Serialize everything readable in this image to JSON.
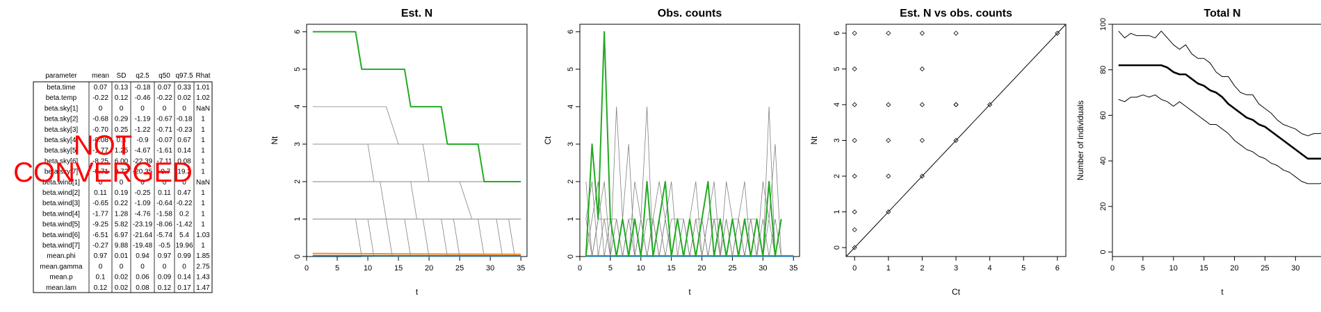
{
  "summary_table": {
    "headers": [
      "parameter",
      "mean",
      "SD",
      "q2.5",
      "q50",
      "q97.5",
      "Rhat"
    ],
    "rows": [
      [
        "beta.time",
        "0.07",
        "0.13",
        "-0.18",
        "0.07",
        "0.33",
        "1.01"
      ],
      [
        "beta.temp",
        "-0.22",
        "0.12",
        "-0.46",
        "-0.22",
        "0.02",
        "1.02"
      ],
      [
        "beta.sky[1]",
        "0",
        "0",
        "0",
        "0",
        "0",
        "NaN"
      ],
      [
        "beta.sky[2]",
        "-0.68",
        "0.29",
        "-1.19",
        "-0.67",
        "-0.18",
        "1"
      ],
      [
        "beta.sky[3]",
        "-0.70",
        "0.25",
        "-1.22",
        "-0.71",
        "-0.23",
        "1"
      ],
      [
        "beta.sky[4]",
        "-0.08",
        "0.4",
        "-0.9",
        "-0.07",
        "0.67",
        "1"
      ],
      [
        "beta.sky[5]",
        "-1.77",
        "1.25",
        "-4.67",
        "-1.61",
        "0.14",
        "1"
      ],
      [
        "beta.sky[6]",
        "-8.25",
        "6.00",
        "-22.39",
        "-7.11",
        "0.08",
        "1"
      ],
      [
        "beta.sky[7]",
        "-0.71",
        "9.72",
        "-20.35",
        "-0.7",
        "19.2",
        "1"
      ],
      [
        "beta.wind[1]",
        "0",
        "0",
        "0",
        "0",
        "0",
        "NaN"
      ],
      [
        "beta.wind[2]",
        "0.11",
        "0.19",
        "-0.25",
        "0.11",
        "0.47",
        "1"
      ],
      [
        "beta.wind[3]",
        "-0.65",
        "0.22",
        "-1.09",
        "-0.64",
        "-0.22",
        "1"
      ],
      [
        "beta.wind[4]",
        "-1.77",
        "1.28",
        "-4.76",
        "-1.58",
        "0.2",
        "1"
      ],
      [
        "beta.wind[5]",
        "-9.25",
        "5.82",
        "-23.19",
        "-8.06",
        "-1.42",
        "1"
      ],
      [
        "beta.wind[6]",
        "-6.51",
        "6.97",
        "-21.64",
        "-5.74",
        "5.4",
        "1.03"
      ],
      [
        "beta.wind[7]",
        "-0.27",
        "9.88",
        "-19.48",
        "-0.5",
        "19.96",
        "1"
      ],
      [
        "mean.phi",
        "0.97",
        "0.01",
        "0.94",
        "0.97",
        "0.99",
        "1.85"
      ],
      [
        "mean.gamma",
        "0",
        "0",
        "0",
        "0",
        "0",
        "2.75"
      ],
      [
        "mean.p",
        "0.1",
        "0.02",
        "0.06",
        "0.09",
        "0.14",
        "1.43"
      ],
      [
        "mean.lam",
        "0.12",
        "0.02",
        "0.08",
        "0.12",
        "0.17",
        "1.47"
      ]
    ],
    "warning_line1": "NOT",
    "warning_line2": "CONVERGED",
    "warning_color": "#ff0000"
  },
  "chart_data": [
    {
      "type": "line",
      "title": "Est. N",
      "xlabel": "t",
      "ylabel": "Nt",
      "xlim": [
        0,
        36
      ],
      "ylim": [
        0,
        6.2
      ],
      "xticks": [
        0,
        5,
        10,
        15,
        20,
        25,
        30,
        35
      ],
      "yticks": [
        0,
        1,
        2,
        3,
        4,
        5,
        6
      ],
      "grid": false,
      "colors": {
        "highlight": "#22aa22",
        "background_series": "#808080",
        "low1": "#ff8c1a",
        "low2": "#1f77b4"
      },
      "highlight_series": {
        "x": [
          1,
          8,
          9,
          16,
          17,
          22,
          23,
          28,
          29,
          35
        ],
        "y": [
          6,
          6,
          5,
          5,
          4,
          4,
          3,
          3,
          2,
          2
        ]
      },
      "background_series": [
        {
          "x": [
            1,
            13,
            15,
            35
          ],
          "y": [
            4,
            4,
            3,
            3
          ]
        },
        {
          "x": [
            1,
            10,
            11,
            35
          ],
          "y": [
            3,
            3,
            2,
            2
          ]
        },
        {
          "x": [
            1,
            19,
            20,
            35
          ],
          "y": [
            3,
            3,
            2,
            2
          ]
        },
        {
          "x": [
            1,
            12,
            13,
            35
          ],
          "y": [
            2,
            2,
            1,
            1
          ]
        },
        {
          "x": [
            1,
            17,
            18,
            35
          ],
          "y": [
            2,
            2,
            1,
            1
          ]
        },
        {
          "x": [
            1,
            25,
            27,
            35
          ],
          "y": [
            2,
            2,
            1,
            1
          ]
        },
        {
          "x": [
            1,
            8,
            9,
            35
          ],
          "y": [
            1,
            1,
            0,
            0
          ]
        },
        {
          "x": [
            1,
            10,
            11,
            35
          ],
          "y": [
            1,
            1,
            0,
            0
          ]
        },
        {
          "x": [
            1,
            13,
            14,
            35
          ],
          "y": [
            1,
            1,
            0,
            0
          ]
        },
        {
          "x": [
            1,
            16,
            17,
            35
          ],
          "y": [
            1,
            1,
            0,
            0
          ]
        },
        {
          "x": [
            1,
            19,
            20,
            35
          ],
          "y": [
            1,
            1,
            0,
            0
          ]
        },
        {
          "x": [
            1,
            22,
            23,
            35
          ],
          "y": [
            1,
            1,
            0,
            0
          ]
        },
        {
          "x": [
            1,
            24,
            25,
            35
          ],
          "y": [
            1,
            1,
            0,
            0
          ]
        },
        {
          "x": [
            1,
            28,
            29,
            35
          ],
          "y": [
            1,
            1,
            0,
            0
          ]
        },
        {
          "x": [
            1,
            31,
            32,
            35
          ],
          "y": [
            1,
            1,
            0,
            0
          ]
        },
        {
          "x": [
            1,
            33,
            34,
            35
          ],
          "y": [
            1,
            1,
            0,
            0
          ]
        }
      ],
      "low_series": [
        {
          "x": [
            1,
            35
          ],
          "y": [
            0.08,
            0.06
          ]
        },
        {
          "x": [
            1,
            35
          ],
          "y": [
            0.02,
            0.02
          ]
        }
      ]
    },
    {
      "type": "line",
      "title": "Obs. counts",
      "xlabel": "t",
      "ylabel": "Ct",
      "xlim": [
        0,
        36
      ],
      "ylim": [
        0,
        6.2
      ],
      "xticks": [
        0,
        5,
        10,
        15,
        20,
        25,
        30,
        35
      ],
      "yticks": [
        0,
        1,
        2,
        3,
        4,
        5,
        6
      ],
      "grid": false,
      "colors": {
        "highlight": "#22aa22",
        "background_series": "#808080",
        "low1": "#ff8c1a",
        "low2": "#1f77b4"
      },
      "highlight_series": {
        "x": [
          1,
          2,
          3,
          4,
          5,
          6,
          7,
          8,
          9,
          10,
          11,
          12,
          13,
          14,
          15,
          16,
          17,
          18,
          19,
          20,
          21,
          22,
          23,
          24,
          25,
          26,
          27,
          28,
          29,
          30,
          31,
          32,
          33
        ],
        "y": [
          0,
          3,
          1,
          6,
          1,
          0,
          1,
          0,
          1,
          0,
          2,
          0,
          1,
          2,
          0,
          1,
          0,
          1,
          0,
          1,
          2,
          0,
          1,
          0,
          1,
          0,
          1,
          0,
          1,
          0,
          2,
          0,
          1
        ]
      },
      "background_series": [
        {
          "x": [
            1,
            2,
            3,
            4,
            5,
            6,
            7,
            8,
            9,
            10,
            11,
            12,
            13,
            14,
            15,
            16,
            17,
            18,
            19,
            20,
            21,
            22,
            23,
            24,
            25,
            26,
            27,
            28,
            29,
            30,
            31,
            32,
            33
          ],
          "y": [
            2,
            0,
            1,
            2,
            0,
            4,
            1,
            0,
            2,
            1,
            0,
            1,
            0,
            1,
            2,
            0,
            1,
            0,
            1,
            0,
            1,
            2,
            0,
            1,
            0,
            1,
            2,
            0,
            1,
            0,
            4,
            0,
            1
          ]
        },
        {
          "x": [
            1,
            2,
            3,
            4,
            5,
            6,
            7,
            8,
            9,
            10,
            11,
            12,
            13,
            14,
            15,
            16,
            17,
            18,
            19,
            20,
            21,
            22,
            23,
            24,
            25,
            26,
            27,
            28,
            29,
            30,
            31,
            32,
            33
          ],
          "y": [
            1,
            2,
            0,
            1,
            1,
            0,
            1,
            3,
            0,
            1,
            4,
            0,
            1,
            0,
            1,
            1,
            0,
            1,
            2,
            0,
            1,
            1,
            0,
            2,
            1,
            0,
            1,
            1,
            0,
            2,
            1,
            3,
            0
          ]
        },
        {
          "x": [
            1,
            2,
            3,
            4,
            5,
            6,
            7,
            8,
            9,
            10,
            11,
            12,
            13,
            14,
            15,
            16,
            17,
            18,
            19,
            20,
            21,
            22,
            23,
            24,
            25,
            26,
            27,
            28,
            29,
            30,
            31,
            32,
            33
          ],
          "y": [
            0,
            1,
            2,
            0,
            1,
            1,
            0,
            1,
            1,
            0,
            1,
            1,
            2,
            1,
            0,
            1,
            1,
            0,
            1,
            1,
            0,
            1,
            1,
            0,
            1,
            1,
            0,
            1,
            1,
            0,
            1,
            0,
            1
          ]
        },
        {
          "x": [
            1,
            2,
            3,
            4,
            5,
            6,
            7,
            8,
            9,
            10,
            11,
            12,
            13,
            14,
            15,
            16,
            17,
            18,
            19,
            20,
            21,
            22,
            23,
            24,
            25,
            26,
            27,
            28,
            29,
            30,
            31,
            32,
            33
          ],
          "y": [
            1,
            0,
            1,
            1,
            0,
            1,
            0,
            1,
            0,
            1,
            0,
            1,
            0,
            1,
            0,
            1,
            0,
            1,
            0,
            1,
            0,
            1,
            0,
            1,
            0,
            1,
            0,
            1,
            0,
            1,
            0,
            1,
            0
          ]
        }
      ],
      "low_series": [
        {
          "x": [
            1,
            35
          ],
          "y": [
            0.02,
            0.02
          ]
        },
        {
          "x": [
            1,
            35
          ],
          "y": [
            0.01,
            0.01
          ]
        }
      ]
    },
    {
      "type": "scatter",
      "title": "Est. N vs obs. counts",
      "xlabel": "Ct",
      "ylabel": "Nt",
      "xlim": [
        -0.25,
        6.25
      ],
      "ylim": [
        -0.25,
        6.25
      ],
      "xticks": [
        0,
        1,
        2,
        3,
        4,
        5,
        6
      ],
      "yticks": [
        0,
        1,
        2,
        3,
        4,
        5,
        6
      ],
      "grid": false,
      "reference_line": "y = x",
      "points": {
        "x": [
          0,
          0,
          0,
          0,
          0,
          0,
          0,
          0,
          1,
          1,
          1,
          1,
          1,
          2,
          2,
          2,
          2,
          2,
          3,
          3,
          3,
          3,
          4,
          6
        ],
        "y": [
          0,
          0.5,
          1,
          2,
          3,
          4,
          5,
          6,
          1,
          2,
          3,
          4,
          6,
          2,
          3,
          4,
          5,
          6,
          3,
          4,
          6,
          4,
          4,
          6
        ]
      }
    },
    {
      "type": "line",
      "title": "Total N",
      "xlabel": "t",
      "ylabel": "Number of individuals",
      "xlim": [
        0,
        36
      ],
      "ylim": [
        -2,
        100
      ],
      "xticks": [
        0,
        5,
        10,
        15,
        20,
        25,
        30,
        35
      ],
      "yticks": [
        0,
        20,
        40,
        60,
        80,
        100
      ],
      "grid": false,
      "x": [
        1,
        2,
        3,
        4,
        5,
        6,
        7,
        8,
        9,
        10,
        11,
        12,
        13,
        14,
        15,
        16,
        17,
        18,
        19,
        20,
        21,
        22,
        23,
        24,
        25,
        26,
        27,
        28,
        29,
        30,
        31,
        32,
        33,
        34,
        35
      ],
      "series": [
        {
          "values": [
            97,
            94,
            96,
            95,
            95,
            95,
            94,
            97,
            94,
            91,
            89,
            91,
            87,
            85,
            85,
            83,
            79,
            77,
            77,
            73,
            70,
            69,
            69,
            65,
            63,
            61,
            58,
            56,
            55,
            54,
            52,
            51,
            52,
            52,
            53
          ]
        },
        {
          "values": [
            82,
            82,
            82,
            82,
            82,
            82,
            82,
            82,
            81,
            79,
            78,
            78,
            76,
            74,
            73,
            71,
            70,
            68,
            65,
            63,
            61,
            59,
            58,
            56,
            55,
            53,
            51,
            49,
            47,
            45,
            43,
            41,
            41,
            41,
            41
          ]
        },
        {
          "values": [
            67,
            66,
            68,
            68,
            69,
            68,
            69,
            67,
            66,
            64,
            66,
            64,
            62,
            60,
            58,
            56,
            56,
            54,
            52,
            49,
            47,
            45,
            44,
            42,
            41,
            39,
            38,
            36,
            35,
            33,
            31,
            30,
            30,
            30,
            31
          ]
        }
      ]
    }
  ]
}
